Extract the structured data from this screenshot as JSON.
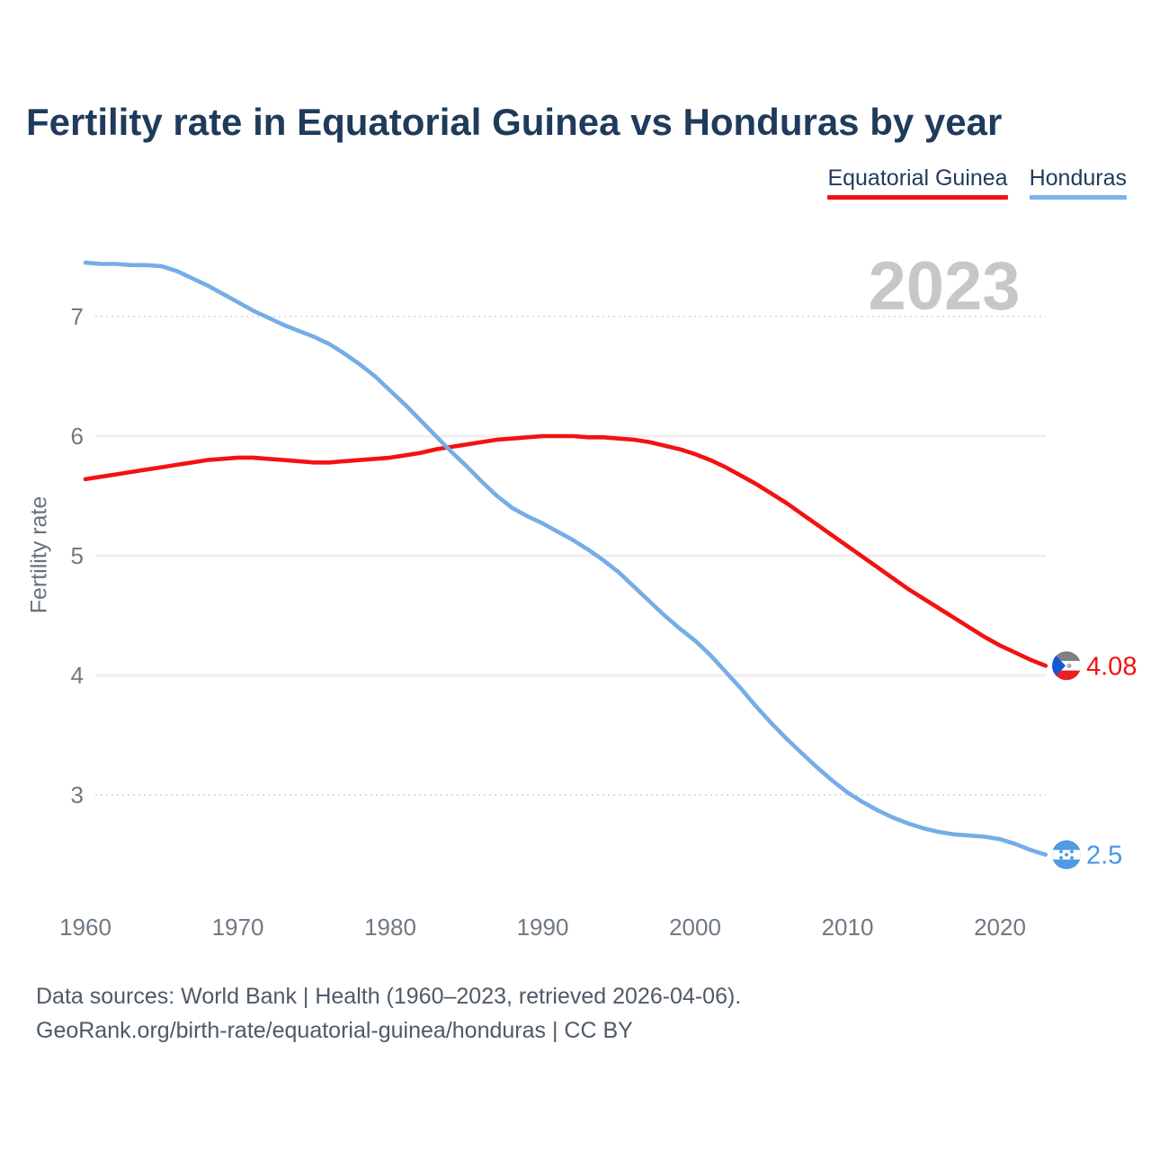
{
  "title": "Fertility rate in Equatorial Guinea vs Honduras by year",
  "watermark_year": "2023",
  "legend": [
    {
      "label": "Equatorial Guinea",
      "color": "#f31212"
    },
    {
      "label": "Honduras",
      "color": "#7cb3e8"
    }
  ],
  "ylabel": "Fertility rate",
  "footer": {
    "line1": "Data sources: World Bank | Health (1960–2023, retrieved 2026-04-06).",
    "line2": "GeoRank.org/birth-rate/equatorial-guinea/honduras | CC BY"
  },
  "colors": {
    "title_text": "#1f3b5c",
    "tick_text": "#6f7983",
    "footer_text": "#4e5a66",
    "watermark": "#c5c8cb",
    "grid_solid": "#efefef",
    "grid_dotted": "#dfdfdf",
    "equatorial_guinea_line": "#f31212",
    "honduras_line": "#75ade6",
    "equatorial_guinea_value_label": "#f31212",
    "honduras_value_label": "#4897e8"
  },
  "chart_data": {
    "type": "line",
    "title": "Fertility rate in Equatorial Guinea vs Honduras by year",
    "xlabel": "",
    "ylabel": "Fertility rate",
    "grid": "horizontal",
    "legend_position": "top-right",
    "xlim": [
      1960,
      2023
    ],
    "ylim": [
      2.2,
      7.6
    ],
    "x_ticks": [
      1960,
      1970,
      1980,
      1990,
      2000,
      2010,
      2020
    ],
    "y_ticks": [
      3,
      4,
      5,
      6,
      7
    ],
    "dotted_gridlines": [
      3,
      7
    ],
    "x": [
      1960,
      1961,
      1962,
      1963,
      1964,
      1965,
      1966,
      1967,
      1968,
      1969,
      1970,
      1971,
      1972,
      1973,
      1974,
      1975,
      1976,
      1977,
      1978,
      1979,
      1980,
      1981,
      1982,
      1983,
      1984,
      1985,
      1986,
      1987,
      1988,
      1989,
      1990,
      1991,
      1992,
      1993,
      1994,
      1995,
      1996,
      1997,
      1998,
      1999,
      2000,
      2001,
      2002,
      2003,
      2004,
      2005,
      2006,
      2007,
      2008,
      2009,
      2010,
      2011,
      2012,
      2013,
      2014,
      2015,
      2016,
      2017,
      2018,
      2019,
      2020,
      2021,
      2022,
      2023
    ],
    "series": [
      {
        "name": "Equatorial Guinea",
        "color": "#f31212",
        "label_color": "#f31212",
        "end_label": "4.08",
        "flag_icon": "equatorial-guinea-flag-icon",
        "values": [
          5.64,
          5.66,
          5.68,
          5.7,
          5.72,
          5.74,
          5.76,
          5.78,
          5.8,
          5.81,
          5.82,
          5.82,
          5.81,
          5.8,
          5.79,
          5.78,
          5.78,
          5.79,
          5.8,
          5.81,
          5.82,
          5.84,
          5.86,
          5.89,
          5.91,
          5.93,
          5.95,
          5.97,
          5.98,
          5.99,
          6.0,
          6.0,
          6.0,
          5.99,
          5.99,
          5.98,
          5.97,
          5.95,
          5.92,
          5.89,
          5.85,
          5.8,
          5.74,
          5.67,
          5.6,
          5.52,
          5.44,
          5.35,
          5.26,
          5.17,
          5.08,
          4.99,
          4.9,
          4.81,
          4.72,
          4.64,
          4.56,
          4.48,
          4.4,
          4.32,
          4.25,
          4.19,
          4.13,
          4.08
        ]
      },
      {
        "name": "Honduras",
        "color": "#75ade6",
        "label_color": "#4897e8",
        "end_label": "2.5",
        "flag_icon": "honduras-flag-icon",
        "values": [
          7.45,
          7.44,
          7.44,
          7.43,
          7.43,
          7.42,
          7.38,
          7.32,
          7.26,
          7.19,
          7.12,
          7.05,
          6.99,
          6.93,
          6.88,
          6.83,
          6.77,
          6.69,
          6.6,
          6.5,
          6.38,
          6.26,
          6.13,
          6.0,
          5.87,
          5.75,
          5.62,
          5.5,
          5.4,
          5.33,
          5.27,
          5.2,
          5.13,
          5.05,
          4.96,
          4.86,
          4.74,
          4.62,
          4.5,
          4.39,
          4.29,
          4.17,
          4.03,
          3.89,
          3.74,
          3.6,
          3.47,
          3.35,
          3.23,
          3.12,
          3.02,
          2.94,
          2.87,
          2.81,
          2.76,
          2.72,
          2.69,
          2.67,
          2.66,
          2.65,
          2.63,
          2.59,
          2.54,
          2.5
        ]
      }
    ]
  }
}
